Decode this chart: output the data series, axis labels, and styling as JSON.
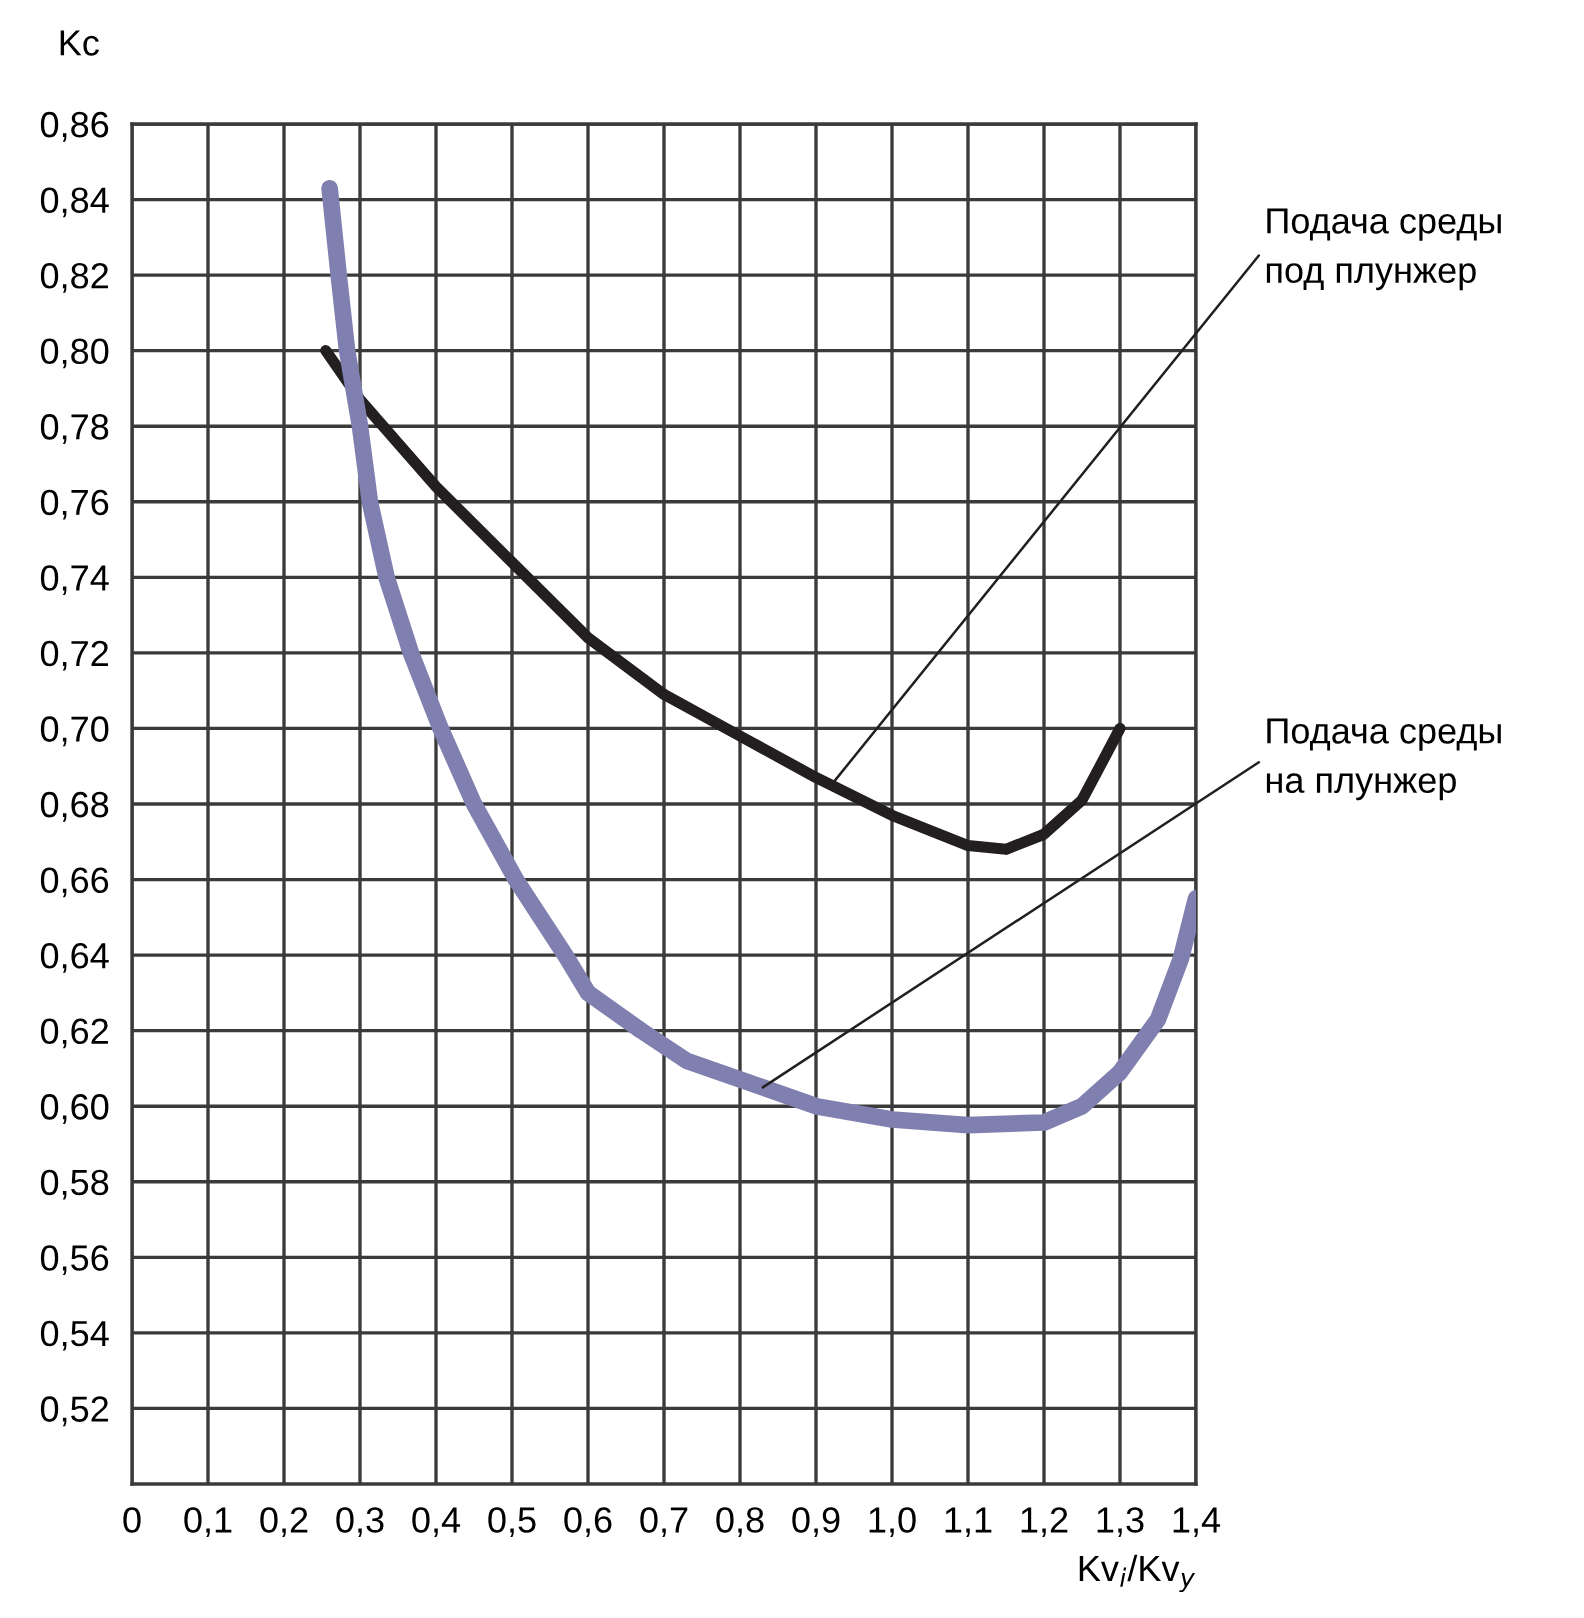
{
  "chart_data": {
    "type": "line",
    "xlabel": "Kv$_{i}$/Kv$_{y}$",
    "ylabel": "Kc",
    "xlim": [
      0,
      1.4
    ],
    "ylim": [
      0.5,
      0.86
    ],
    "xticks": [
      0,
      {
        "value": 0.1,
        "label": "0,1"
      },
      {
        "value": 0.2,
        "label": "0,2"
      },
      {
        "value": 0.3,
        "label": "0,3"
      },
      {
        "value": 0.4,
        "label": "0,4"
      },
      {
        "value": 0.5,
        "label": "0,5"
      },
      {
        "value": 0.6,
        "label": "0,6"
      },
      {
        "value": 0.7,
        "label": "0,7"
      },
      {
        "value": 0.8,
        "label": "0,8"
      },
      {
        "value": 0.9,
        "label": "0,9"
      },
      {
        "value": 1.0,
        "label": "1,0"
      },
      {
        "value": 1.1,
        "label": "1,1"
      },
      {
        "value": 1.2,
        "label": "1,2"
      },
      {
        "value": 1.3,
        "label": "1,3"
      },
      {
        "value": 1.4,
        "label": "1,4"
      }
    ],
    "yticks": [
      {
        "value": 0.52,
        "label": "0,52"
      },
      {
        "value": 0.54,
        "label": "0,54"
      },
      {
        "value": 0.56,
        "label": "0,56"
      },
      {
        "value": 0.58,
        "label": "0,58"
      },
      {
        "value": 0.6,
        "label": "0,60"
      },
      {
        "value": 0.62,
        "label": "0,62"
      },
      {
        "value": 0.64,
        "label": "0,64"
      },
      {
        "value": 0.66,
        "label": "0,66"
      },
      {
        "value": 0.68,
        "label": "0,68"
      },
      {
        "value": 0.7,
        "label": "0,70"
      },
      {
        "value": 0.72,
        "label": "0,72"
      },
      {
        "value": 0.74,
        "label": "0,74"
      },
      {
        "value": 0.76,
        "label": "0,76"
      },
      {
        "value": 0.78,
        "label": "0,78"
      },
      {
        "value": 0.8,
        "label": "0,80"
      },
      {
        "value": 0.82,
        "label": "0,82"
      },
      {
        "value": 0.84,
        "label": "0,84"
      },
      {
        "value": 0.86,
        "label": "0,86"
      }
    ],
    "grid": true,
    "legend": false,
    "marker": "none",
    "line_style": "solid",
    "series": [
      {
        "color": "#231f20",
        "x": [
          0.255,
          0.3,
          0.4,
          0.5,
          0.6,
          0.7,
          0.8,
          0.9,
          1.0,
          1.1,
          1.15,
          1.2,
          1.25,
          1.3
        ],
        "values": [
          0.8,
          0.787,
          0.764,
          0.744,
          0.724,
          0.709,
          0.698,
          0.687,
          0.677,
          0.669,
          0.668,
          0.672,
          0.681,
          0.7
        ]
      },
      {
        "color": "#8080b0",
        "x": [
          0.26,
          0.272,
          0.283,
          0.3,
          0.313,
          0.335,
          0.367,
          0.406,
          0.45,
          0.505,
          0.57,
          0.6,
          0.67,
          0.73,
          0.83,
          0.9,
          1.0,
          1.1,
          1.2,
          1.25,
          1.3,
          1.35,
          1.38,
          1.4
        ],
        "values": [
          0.843,
          0.82,
          0.8,
          0.78,
          0.76,
          0.74,
          0.72,
          0.7,
          0.68,
          0.66,
          0.64,
          0.63,
          0.62,
          0.612,
          0.605,
          0.6,
          0.5965,
          0.595,
          0.5957,
          0.6,
          0.609,
          0.623,
          0.639,
          0.655
        ]
      }
    ],
    "annotations": [
      {
        "text": "Подача среды\nпод плунжер",
        "x": 0.92,
        "y": 0.685
      },
      {
        "text": "Подача среды\nна плунжер",
        "x": 0.83,
        "y": 0.605
      }
    ]
  }
}
